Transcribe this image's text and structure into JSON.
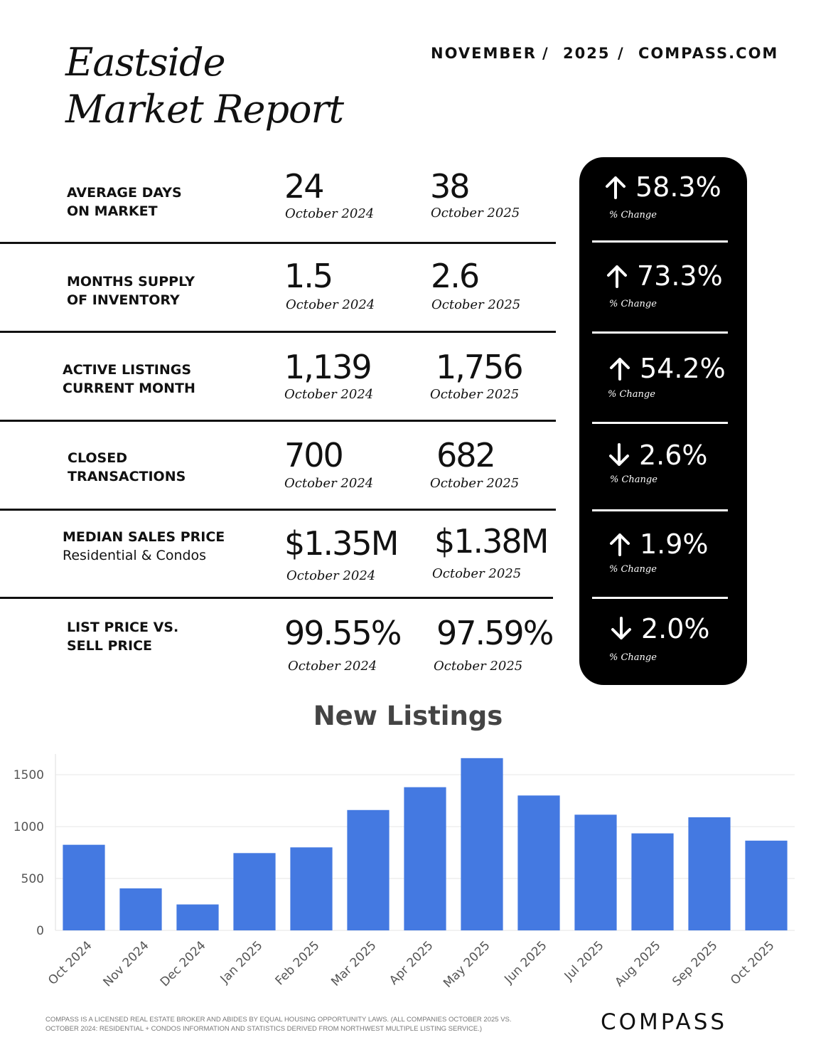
{
  "header": {
    "title_line1": "Eastside",
    "title_line2": "Market Report",
    "month": "NOVEMBER",
    "sep1": "/",
    "year": "2025",
    "sep2": "/",
    "site": "COMPASS.COM"
  },
  "metrics": [
    {
      "label1": "AVERAGE DAYS",
      "label2": "ON MARKET",
      "prev_value": "24",
      "prev_period": "October 2024",
      "curr_value": "38",
      "curr_period": "October 2025",
      "direction": "up",
      "change": "58.3%",
      "change_label": "% Change"
    },
    {
      "label1": "MONTHS SUPPLY",
      "label2": "OF INVENTORY",
      "prev_value": "1.5",
      "prev_period": "October 2024",
      "curr_value": "2.6",
      "curr_period": "October 2025",
      "direction": "up",
      "change": "73.3%",
      "change_label": "% Change"
    },
    {
      "label1": "ACTIVE LISTINGS",
      "label2": "CURRENT MONTH",
      "prev_value": "1,139",
      "prev_period": "October 2024",
      "curr_value": "1,756",
      "curr_period": "October 2025",
      "direction": "up",
      "change": "54.2%",
      "change_label": "% Change"
    },
    {
      "label1": "CLOSED",
      "label2": "TRANSACTIONS",
      "prev_value": "700",
      "prev_period": "October 2024",
      "curr_value": "682",
      "curr_period": "October 2025",
      "direction": "down",
      "change": "2.6%",
      "change_label": "% Change"
    },
    {
      "label1": "MEDIAN SALES PRICE",
      "label2": "Residential & Condos",
      "prev_value": "$1.35M",
      "prev_period": "October 2024",
      "curr_value": "$1.38M",
      "curr_period": "October 2025",
      "direction": "up",
      "change": "1.9%",
      "change_label": "% Change"
    },
    {
      "label1": "LIST PRICE VS.",
      "label2": "SELL PRICE",
      "prev_value": "99.55%",
      "prev_period": "October 2024",
      "curr_value": "97.59%",
      "curr_period": "October 2025",
      "direction": "down",
      "change": "2.0%",
      "change_label": "% Change"
    }
  ],
  "chart_data": {
    "type": "bar",
    "title": "New Listings",
    "categories": [
      "Oct 2024",
      "Nov 2024",
      "Dec 2024",
      "Jan 2025",
      "Feb 2025",
      "Mar 2025",
      "Apr 2025",
      "May 2025",
      "Jun 2025",
      "Jul 2025",
      "Aug 2025",
      "Sep 2025",
      "Oct 2025"
    ],
    "values": [
      825,
      405,
      250,
      745,
      800,
      1160,
      1380,
      1660,
      1300,
      1115,
      935,
      1090,
      865
    ],
    "yticks": [
      0,
      500,
      1000,
      1500
    ],
    "ylim": [
      0,
      1700
    ],
    "grid": true,
    "bar_color": "#4479E1"
  },
  "footer": {
    "disclaimer_line1": "COMPASS IS A LICENSED REAL ESTATE BROKER AND ABIDES BY EQUAL HOUSING OPPORTUNITY LAWS. (ALL COMPANIES OCTOBER 2025 VS.",
    "disclaimer_line2": "OCTOBER 2024: RESIDENTIAL + CONDOS INFORMATION AND STATISTICS DERIVED FROM NORTHWEST MULTIPLE LISTING SERVICE.)",
    "logo_text": "COMPASS"
  }
}
